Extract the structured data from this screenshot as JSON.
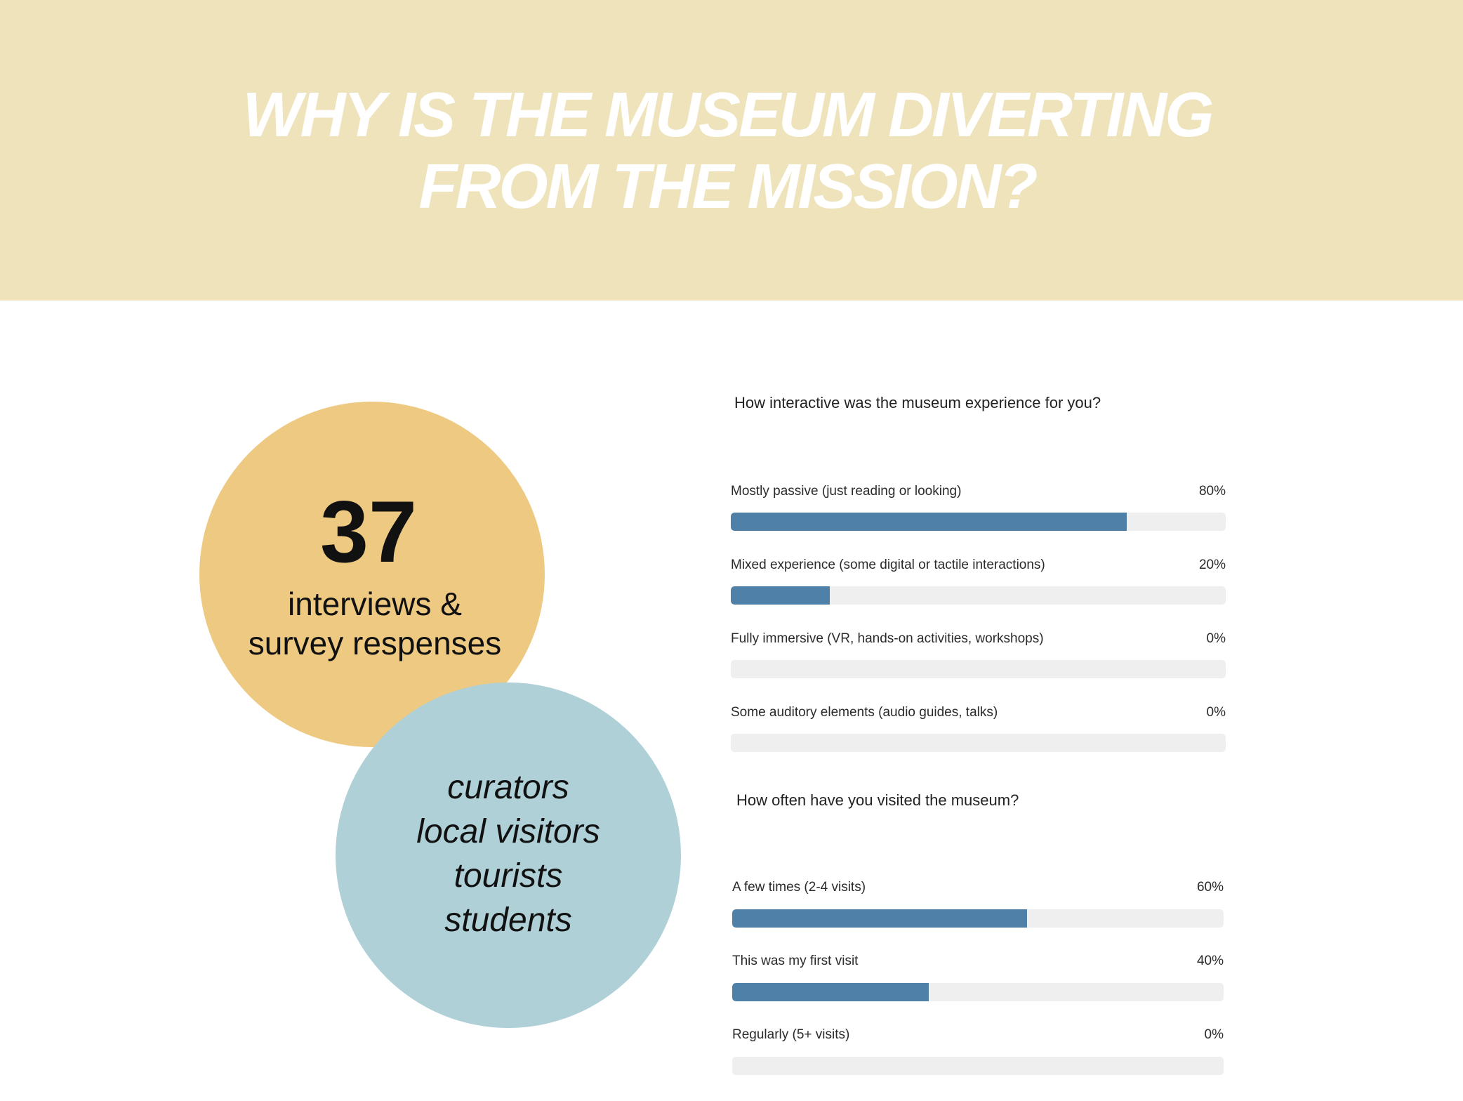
{
  "title": {
    "line1": "WHY IS THE MUSEUM DIVERTING",
    "line2": "FROM THE MISSION?"
  },
  "stat": {
    "number": "37",
    "caption_line1": "interviews &",
    "caption_line2": "survey respenses"
  },
  "groups": [
    "curators",
    "local visitors",
    "tourists",
    "students"
  ],
  "colors": {
    "header_bg": "#efe3bc",
    "stat_circle": "#eec982",
    "groups_circle": "#afd0d7",
    "bar_fill": "#4f80a8",
    "bar_track": "#efefef"
  },
  "survey1": {
    "question": "How interactive was the museum experience for you?",
    "options": [
      {
        "label": "Mostly passive (just reading or looking)",
        "percent_text": "80%",
        "value": 80
      },
      {
        "label": "Mixed experience (some digital or tactile interactions)",
        "percent_text": "20%",
        "value": 20
      },
      {
        "label": "Fully immersive (VR, hands-on activities, workshops)",
        "percent_text": "0%",
        "value": 0
      },
      {
        "label": "Some auditory elements (audio guides, talks)",
        "percent_text": "0%",
        "value": 0
      }
    ]
  },
  "survey2": {
    "question": "How often have you visited the museum?",
    "options": [
      {
        "label": "A few times (2-4 visits)",
        "percent_text": "60%",
        "value": 60
      },
      {
        "label": "This was my first visit",
        "percent_text": "40%",
        "value": 40
      },
      {
        "label": "Regularly (5+ visits)",
        "percent_text": "0%",
        "value": 0
      }
    ]
  }
}
